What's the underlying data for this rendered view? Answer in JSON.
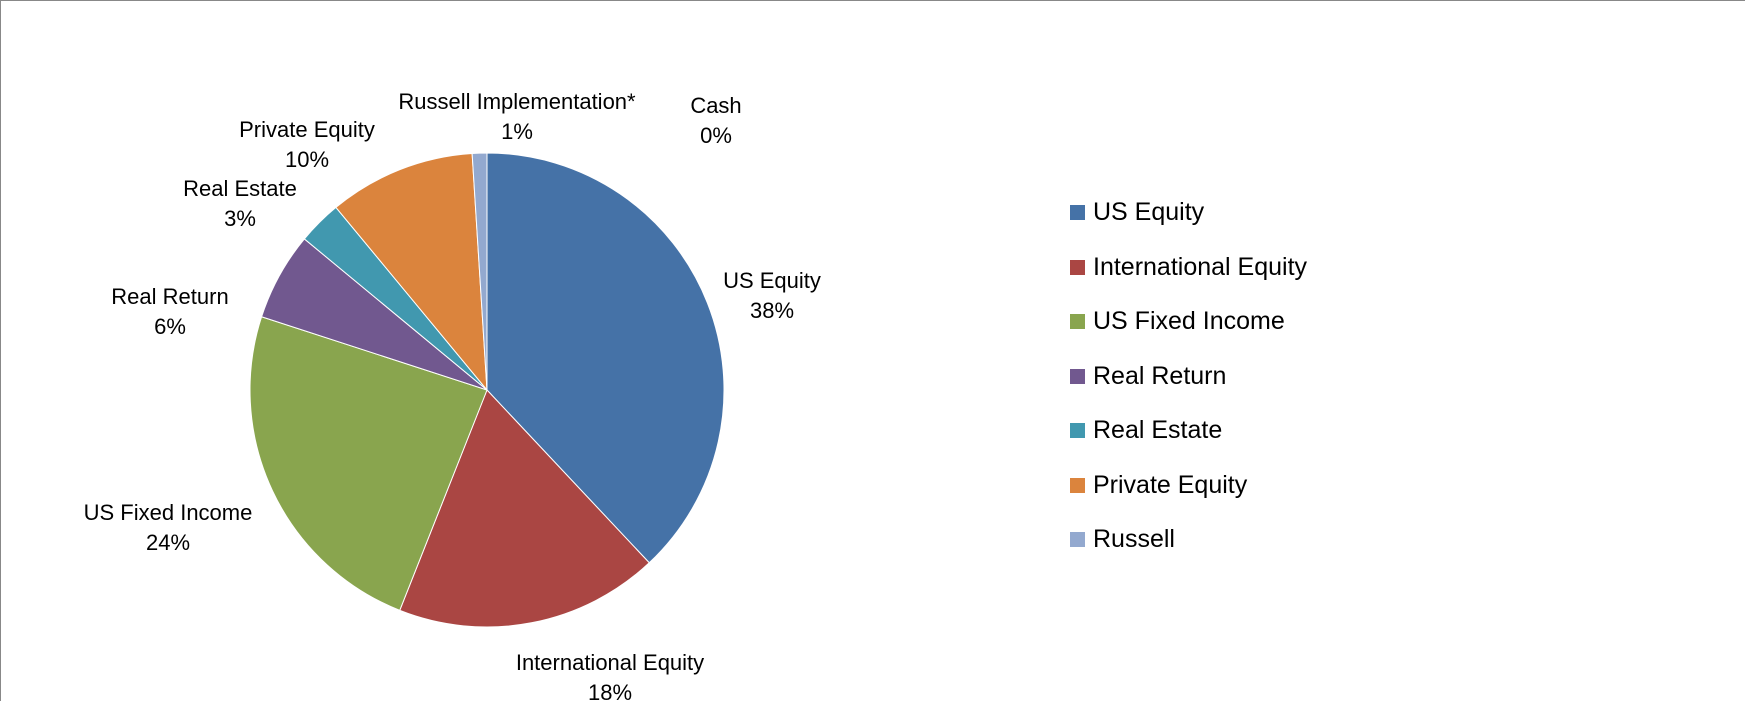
{
  "chart_data": {
    "type": "pie",
    "categories": [
      "US Equity",
      "International Equity",
      "US Fixed Income",
      "Real Return",
      "Real Estate",
      "Private Equity",
      "Russell Implementation*",
      "Cash"
    ],
    "values": [
      38,
      18,
      24,
      6,
      3,
      10,
      1,
      0
    ],
    "value_labels": [
      "38%",
      "18%",
      "24%",
      "6%",
      "3%",
      "10%",
      "1%",
      "0%"
    ],
    "colors": [
      "#4572a7",
      "#aa4643",
      "#89a54e",
      "#71588f",
      "#4198af",
      "#db843d",
      "#93a9cf",
      "#d9777a"
    ],
    "legend": "right"
  }
}
